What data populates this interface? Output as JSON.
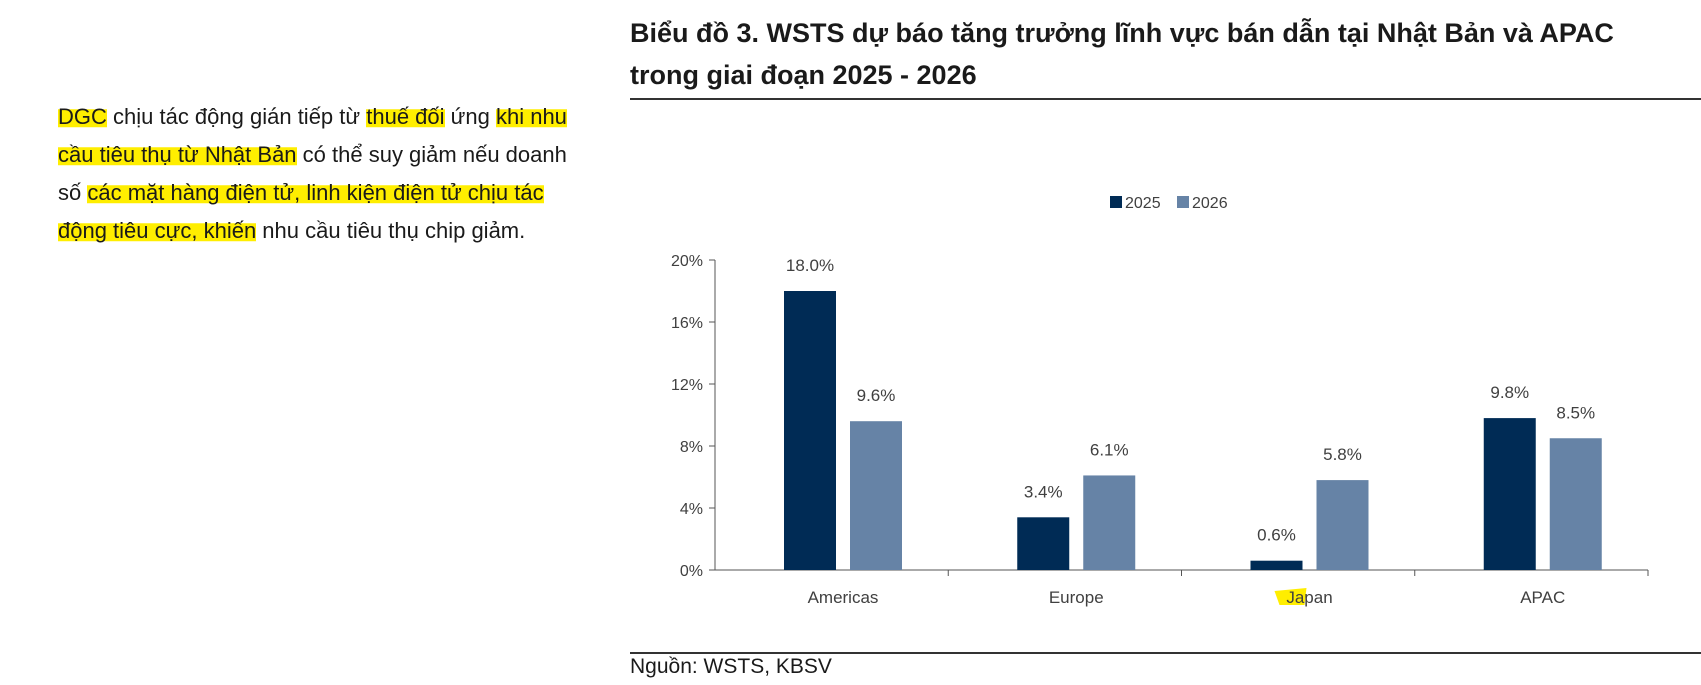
{
  "left_text": {
    "segments": [
      {
        "text": "DGC",
        "hl": true
      },
      {
        "text": " chịu tác động gián tiếp từ ",
        "hl": false
      },
      {
        "text": "thuế đối",
        "hl": true
      },
      {
        "text": " ứng ",
        "hl": false
      },
      {
        "text": "khi nhu cầu tiêu thụ từ Nhật Bản",
        "hl": true
      },
      {
        "text": " có thể suy giảm nếu doanh số ",
        "hl": false
      },
      {
        "text": "các mặt hàng điện tử, linh kiện điện tử chịu tác động tiêu cực, khiến",
        "hl": true
      },
      {
        "text": " nhu cầu tiêu thụ chip giảm.",
        "hl": false
      }
    ]
  },
  "chart_title": "Biểu đồ 3. WSTS dự báo tăng trưởng lĩnh vực bán dẫn tại Nhật Bản và APAC trong giai đoạn 2025 - 2026",
  "source": "Nguồn: WSTS, KBSV",
  "highlight_color": "#ffee00",
  "chart_data": {
    "type": "bar",
    "title": "Biểu đồ 3. WSTS dự báo tăng trưởng lĩnh vực bán dẫn tại Nhật Bản và APAC trong giai đoạn 2025 - 2026",
    "categories": [
      "Americas",
      "Europe",
      "Japan",
      "APAC"
    ],
    "series": [
      {
        "name": "2025",
        "values": [
          18.0,
          3.4,
          0.6,
          9.8
        ],
        "labels": [
          "18.0%",
          "3.4%",
          "0.6%",
          "9.8%"
        ],
        "color": "#002b55"
      },
      {
        "name": "2026",
        "values": [
          9.6,
          6.1,
          5.8,
          8.5
        ],
        "labels": [
          "9.6%",
          "6.1%",
          "5.8%",
          "8.5%"
        ],
        "color": "#6683a6"
      }
    ],
    "yticks": [
      "0%",
      "4%",
      "8%",
      "12%",
      "16%",
      "20%"
    ],
    "ylim": [
      0,
      20
    ],
    "legend_position": "top-center",
    "grid": false,
    "highlighted_category": "Japan"
  }
}
